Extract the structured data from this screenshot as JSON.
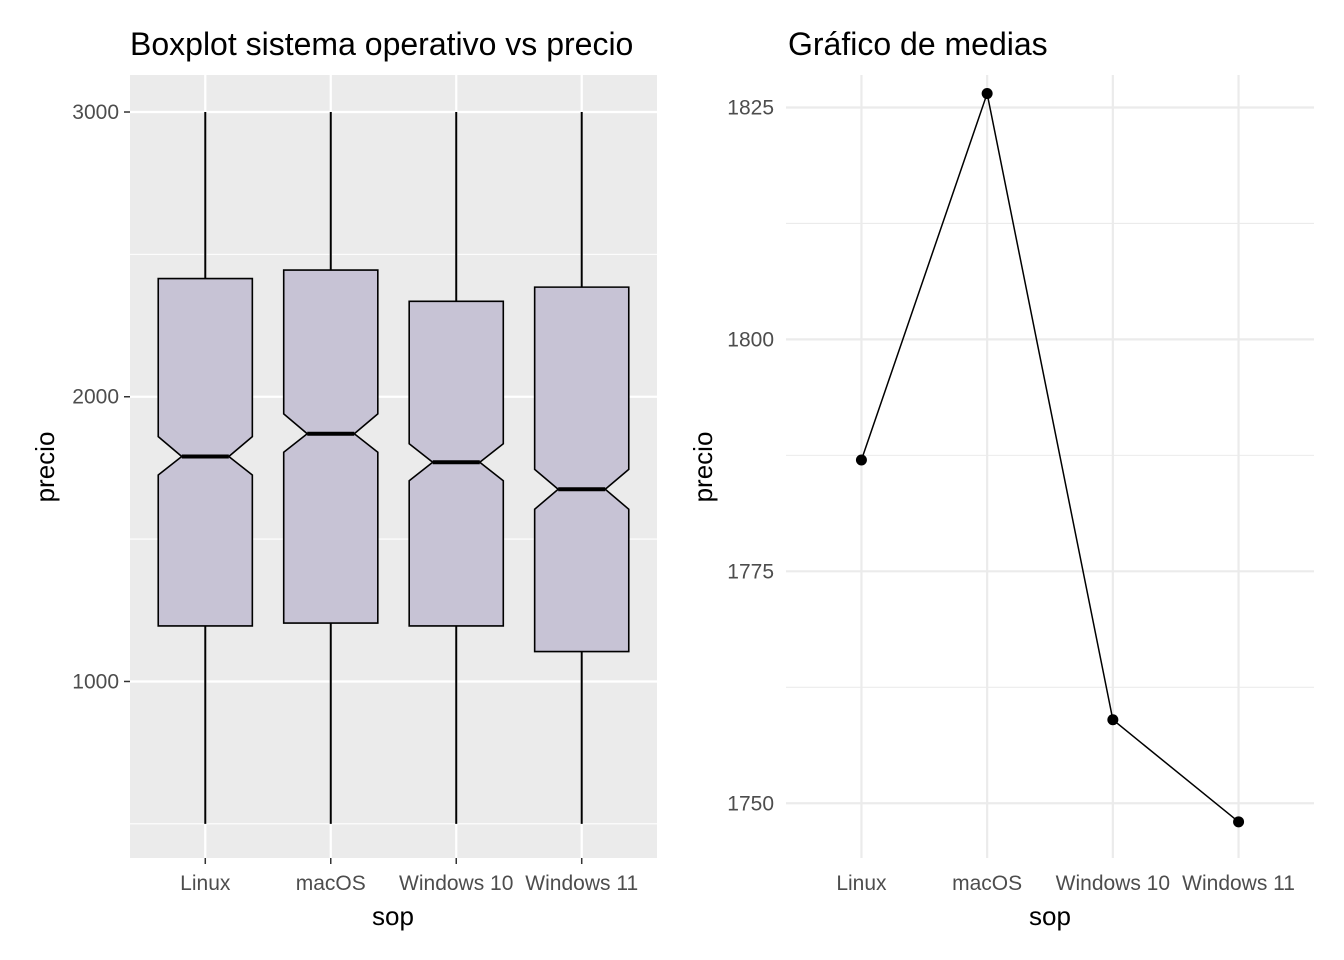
{
  "chart_data": [
    {
      "type": "boxplot",
      "title": "Boxplot sistema operativo vs precio",
      "xlabel": "sop",
      "ylabel": "precio",
      "categories": [
        "Linux",
        "macOS",
        "Windows 10",
        "Windows 11"
      ],
      "boxes": [
        {
          "category": "Linux",
          "min": 500,
          "q1": 1195,
          "median": 1790,
          "q3": 2415,
          "max": 3000,
          "notch_low": 1725,
          "notch_high": 1860
        },
        {
          "category": "macOS",
          "min": 500,
          "q1": 1205,
          "median": 1870,
          "q3": 2445,
          "max": 3000,
          "notch_low": 1805,
          "notch_high": 1940
        },
        {
          "category": "Windows 10",
          "min": 500,
          "q1": 1195,
          "median": 1770,
          "q3": 2335,
          "max": 3000,
          "notch_low": 1705,
          "notch_high": 1835
        },
        {
          "category": "Windows 11",
          "min": 500,
          "q1": 1105,
          "median": 1675,
          "q3": 2385,
          "max": 3000,
          "notch_low": 1605,
          "notch_high": 1745
        }
      ],
      "yticks": [
        1000,
        2000,
        3000
      ],
      "ylim": [
        380,
        3130
      ],
      "fill_color": "#c7c3d5",
      "panel_background": "#ebebeb",
      "grid": true
    },
    {
      "type": "line",
      "title": "Gráfico de medias",
      "xlabel": "sop",
      "ylabel": "precio",
      "categories": [
        "Linux",
        "macOS",
        "Windows 10",
        "Windows 11"
      ],
      "values": [
        1787,
        1826.5,
        1759,
        1748
      ],
      "yticks": [
        1750,
        1775,
        1800,
        1825
      ],
      "ylim": [
        1744.1,
        1828.5
      ],
      "markers": true,
      "grid": true
    }
  ]
}
